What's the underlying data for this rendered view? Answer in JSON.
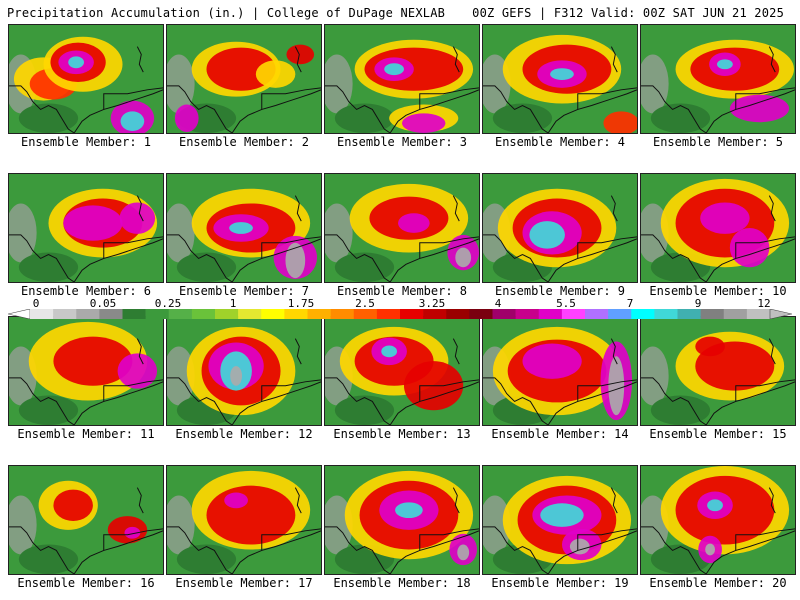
{
  "header": {
    "left": "Precipitation Accumulation (in.) | College of DuPage NEXLAB",
    "right": "00Z GEFS | F312 Valid: 00Z SAT JUN 21 2025"
  },
  "colorbar": {
    "ticks": [
      "0",
      "0.05",
      "0.25",
      "1",
      "1.75",
      "2.5",
      "3.25",
      "4",
      "5.5",
      "7",
      "9",
      "12"
    ],
    "colors": [
      "#e6e6e6",
      "#c8c8c8",
      "#aaaaaa",
      "#8a8a8a",
      "#2e7d32",
      "#3c9a3c",
      "#55b048",
      "#6ac23a",
      "#a0d22a",
      "#e4e830",
      "#ffff00",
      "#ffd700",
      "#ffb000",
      "#ff8c00",
      "#ff6000",
      "#ff3000",
      "#e60000",
      "#c00000",
      "#9a0000",
      "#7a0010",
      "#a0006a",
      "#c8008c",
      "#e000c8",
      "#ff40ff",
      "#b070ff",
      "#60a0ff",
      "#00ffff",
      "#40d8d8",
      "#40b0b0",
      "#808080",
      "#a0a0a0",
      "#c0c0c0"
    ]
  },
  "members": [
    {
      "caption": "Ensemble Member: 1"
    },
    {
      "caption": "Ensemble Member: 2"
    },
    {
      "caption": "Ensemble Member: 3"
    },
    {
      "caption": "Ensemble Member: 4"
    },
    {
      "caption": "Ensemble Member: 5"
    },
    {
      "caption": "Ensemble Member: 6"
    },
    {
      "caption": "Ensemble Member: 7"
    },
    {
      "caption": "Ensemble Member: 8"
    },
    {
      "caption": "Ensemble Member: 9"
    },
    {
      "caption": "Ensemble Member: 10"
    },
    {
      "caption": "Ensemble Member: 11"
    },
    {
      "caption": "Ensemble Member: 12"
    },
    {
      "caption": "Ensemble Member: 13"
    },
    {
      "caption": "Ensemble Member: 14"
    },
    {
      "caption": "Ensemble Member: 15"
    },
    {
      "caption": "Ensemble Member: 16"
    },
    {
      "caption": "Ensemble Member: 17"
    },
    {
      "caption": "Ensemble Member: 18"
    },
    {
      "caption": "Ensemble Member: 19"
    },
    {
      "caption": "Ensemble Member: 20"
    }
  ]
}
